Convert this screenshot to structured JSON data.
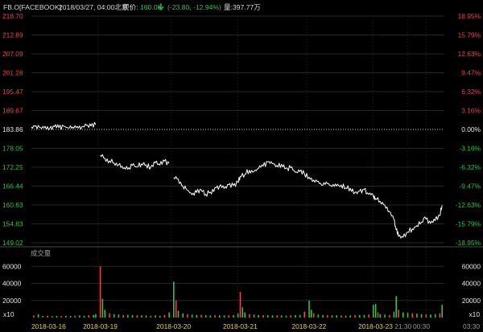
{
  "header": {
    "symbol": "FB.O[FACEBOOK]",
    "datetime": "2018/03/27, 04:00北京",
    "price_label": "现价:",
    "price": "160.06",
    "change": "(-23.80, -12.94%)",
    "volume_label": "量:",
    "volume": "397.77万",
    "arrow_icon": "down-arrow-icon"
  },
  "colors": {
    "up": "#e8454b",
    "down": "#33c04c",
    "line": "#ffffff",
    "grid": "#3a3a3a",
    "date_label": "#e3d33a",
    "background": "#000000"
  },
  "chart_data": [
    {
      "type": "line",
      "title": "",
      "yaxis_left": {
        "ticks": [
          "218.70",
          "212.89",
          "207.09",
          "201.28",
          "195.47",
          "189.67",
          "183.86",
          "178.05",
          "172.25",
          "166.44",
          "160.63",
          "154.83",
          "149.02"
        ],
        "range": [
          149.02,
          218.7
        ]
      },
      "yaxis_right": {
        "ticks": [
          "18.95%",
          "15.79%",
          "12.63%",
          "9.47%",
          "6.32%",
          "3.16%",
          "0.00%",
          "-3.16%",
          "-6.32%",
          "-9.47%",
          "-12.63%",
          "-15.79%",
          "-18.95%"
        ]
      },
      "reference_price": 183.86,
      "xaxis": {
        "labels": [
          "2018-03-16",
          "2018-03-19",
          "2018-03-20",
          "2018-03-21",
          "2018-03-22",
          "2018-03-23",
          "21:30",
          "00:30",
          "03:30"
        ]
      },
      "series": [
        {
          "values": [
            [
              0,
              184.6
            ],
            [
              2,
              185.0
            ],
            [
              4,
              184.4
            ],
            [
              6,
              184.8
            ],
            [
              8,
              184.2
            ],
            [
              10,
              184.7
            ],
            [
              12,
              184.4
            ],
            [
              14,
              184.9
            ],
            [
              16,
              184.3
            ],
            [
              18,
              184.6
            ],
            [
              20,
              184.8
            ],
            [
              22,
              184.7
            ],
            [
              24,
              185.1
            ],
            [
              26,
              184.9
            ],
            [
              28,
              185.3
            ],
            [
              30,
              175.9
            ],
            [
              32,
              175.0
            ],
            [
              34,
              174.2
            ],
            [
              36,
              173.5
            ],
            [
              38,
              173.0
            ],
            [
              40,
              171.8
            ],
            [
              42,
              171.6
            ],
            [
              44,
              172.8
            ],
            [
              46,
              172.3
            ],
            [
              48,
              173.3
            ],
            [
              50,
              173.0
            ],
            [
              52,
              172.2
            ],
            [
              54,
              173.6
            ],
            [
              56,
              172.9
            ],
            [
              58,
              174.1
            ],
            [
              60,
              173.4
            ],
            [
              62,
              169.0
            ],
            [
              64,
              168.6
            ],
            [
              66,
              166.4
            ],
            [
              68,
              165.2
            ],
            [
              70,
              163.8
            ],
            [
              72,
              164.5
            ],
            [
              74,
              165.3
            ],
            [
              76,
              163.9
            ],
            [
              78,
              164.6
            ],
            [
              80,
              166.0
            ],
            [
              82,
              166.4
            ],
            [
              84,
              165.7
            ],
            [
              86,
              166.9
            ],
            [
              88,
              166.6
            ],
            [
              90,
              167.6
            ],
            [
              91,
              169.4
            ],
            [
              93,
              170.0
            ],
            [
              95,
              171.3
            ],
            [
              97,
              170.9
            ],
            [
              99,
              171.9
            ],
            [
              101,
              172.6
            ],
            [
              103,
              173.9
            ],
            [
              105,
              173.4
            ],
            [
              107,
              172.8
            ],
            [
              109,
              173.1
            ],
            [
              111,
              172.0
            ],
            [
              113,
              172.1
            ],
            [
              115,
              170.7
            ],
            [
              117,
              170.9
            ],
            [
              119,
              170.2
            ],
            [
              121,
              169.2
            ],
            [
              123,
              168.3
            ],
            [
              125,
              168.0
            ],
            [
              127,
              166.7
            ],
            [
              129,
              167.2
            ],
            [
              131,
              166.3
            ],
            [
              133,
              166.5
            ],
            [
              135,
              166.8
            ],
            [
              137,
              165.9
            ],
            [
              139,
              165.8
            ],
            [
              141,
              164.5
            ],
            [
              143,
              164.9
            ],
            [
              145,
              165.4
            ],
            [
              147,
              163.9
            ],
            [
              149,
              163.6
            ],
            [
              150,
              162.6
            ],
            [
              152,
              161.8
            ],
            [
              154,
              160.6
            ],
            [
              156,
              158.7
            ],
            [
              158,
              156.2
            ],
            [
              159,
              153.0
            ],
            [
              160,
              151.0
            ],
            [
              162,
              150.7
            ],
            [
              164,
              152.3
            ],
            [
              166,
              153.3
            ],
            [
              168,
              154.3
            ],
            [
              170,
              155.4
            ],
            [
              172,
              156.3
            ],
            [
              174,
              155.0
            ],
            [
              176,
              155.8
            ],
            [
              178,
              157.4
            ],
            [
              179,
              160.5
            ]
          ]
        }
      ]
    },
    {
      "type": "bar",
      "title": "成交量",
      "yaxis": {
        "ticks": [
          "60000",
          "40000",
          "20000"
        ],
        "range": [
          0,
          80000
        ],
        "unit": "x10"
      },
      "series": [
        {
          "values": [
            [
              1,
              2500
            ],
            [
              3,
              4000
            ],
            [
              5,
              1800
            ],
            [
              7,
              2200
            ],
            [
              9,
              1500
            ],
            [
              11,
              2000
            ],
            [
              13,
              1700
            ],
            [
              15,
              2100
            ],
            [
              17,
              1900
            ],
            [
              19,
              2300
            ],
            [
              21,
              2400
            ],
            [
              23,
              2000
            ],
            [
              25,
              2600
            ],
            [
              27,
              3000
            ],
            [
              28,
              4000
            ],
            [
              30,
              60000
            ],
            [
              31,
              22000
            ],
            [
              32,
              9000
            ],
            [
              34,
              5000
            ],
            [
              36,
              4000
            ],
            [
              38,
              3500
            ],
            [
              40,
              3000
            ],
            [
              42,
              3200
            ],
            [
              44,
              2800
            ],
            [
              46,
              2500
            ],
            [
              48,
              2600
            ],
            [
              50,
              2400
            ],
            [
              52,
              2300
            ],
            [
              54,
              2500
            ],
            [
              56,
              2200
            ],
            [
              58,
              2800
            ],
            [
              60,
              6000
            ],
            [
              62,
              42000
            ],
            [
              63,
              20000
            ],
            [
              64,
              8000
            ],
            [
              66,
              5000
            ],
            [
              68,
              4000
            ],
            [
              70,
              3600
            ],
            [
              72,
              3000
            ],
            [
              74,
              3200
            ],
            [
              76,
              2800
            ],
            [
              78,
              2500
            ],
            [
              80,
              2700
            ],
            [
              82,
              2600
            ],
            [
              84,
              2400
            ],
            [
              86,
              2500
            ],
            [
              88,
              2800
            ],
            [
              90,
              5000
            ],
            [
              91,
              30000
            ],
            [
              92,
              12000
            ],
            [
              93,
              6000
            ],
            [
              95,
              4000
            ],
            [
              97,
              3500
            ],
            [
              99,
              3000
            ],
            [
              101,
              2800
            ],
            [
              103,
              2700
            ],
            [
              105,
              2600
            ],
            [
              107,
              2500
            ],
            [
              109,
              2400
            ],
            [
              111,
              2300
            ],
            [
              113,
              2600
            ],
            [
              115,
              2800
            ],
            [
              117,
              3000
            ],
            [
              119,
              7000
            ],
            [
              121,
              20000
            ],
            [
              122,
              9000
            ],
            [
              123,
              5000
            ],
            [
              125,
              3500
            ],
            [
              127,
              3000
            ],
            [
              129,
              2800
            ],
            [
              131,
              2600
            ],
            [
              133,
              2500
            ],
            [
              135,
              2400
            ],
            [
              137,
              2300
            ],
            [
              139,
              2500
            ],
            [
              141,
              2700
            ],
            [
              143,
              2900
            ],
            [
              145,
              3000
            ],
            [
              147,
              3600
            ],
            [
              149,
              15000
            ],
            [
              150,
              16000
            ],
            [
              151,
              6000
            ],
            [
              152,
              4000
            ],
            [
              154,
              3500
            ],
            [
              156,
              3000
            ],
            [
              158,
              7000
            ],
            [
              159,
              25000
            ],
            [
              160,
              9000
            ],
            [
              162,
              6000
            ],
            [
              164,
              5500
            ],
            [
              166,
              5000
            ],
            [
              168,
              4500
            ],
            [
              170,
              4000
            ],
            [
              172,
              3800
            ],
            [
              174,
              3600
            ],
            [
              176,
              4000
            ],
            [
              178,
              5000
            ],
            [
              179,
              15000
            ]
          ]
        }
      ]
    }
  ]
}
